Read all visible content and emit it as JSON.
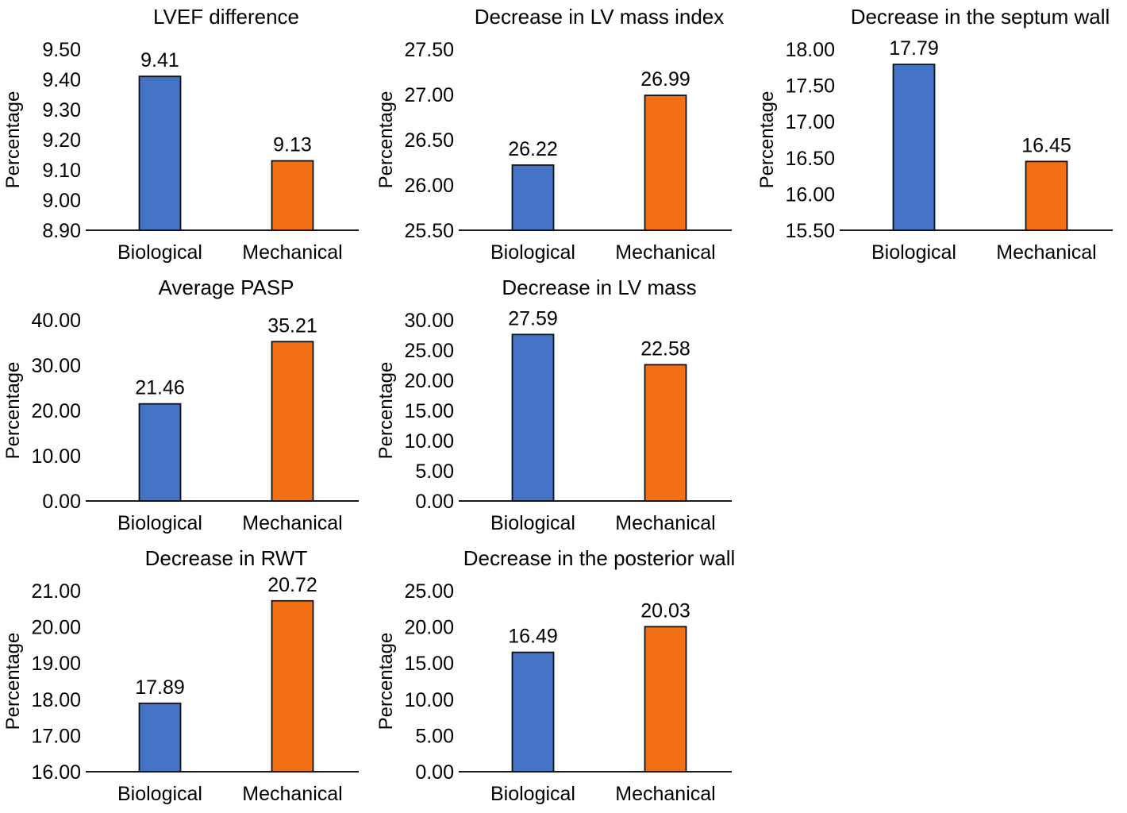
{
  "figure": {
    "background": "#ffffff",
    "layout": "3x3 grid, 7 charts (last column of rows 2 and 3 empty)"
  },
  "colors": {
    "biological_bar": "#4472C4",
    "mechanical_bar": "#F36F13",
    "bar_border": "#111111",
    "axis_line": "#1a1a1a",
    "text": "#000000"
  },
  "chart_data": [
    {
      "type": "bar",
      "title": "LVEF difference",
      "ylabel": "Percentage",
      "xlabel": "",
      "categories": [
        "Biological",
        "Mechanical"
      ],
      "values": [
        9.41,
        9.13
      ],
      "value_labels": [
        "9.41",
        "9.13"
      ],
      "ylim": [
        8.9,
        9.5
      ],
      "ytick_values": [
        8.9,
        9.0,
        9.1,
        9.2,
        9.3,
        9.4,
        9.5
      ],
      "ytick_labels": [
        "8.90",
        "9.00",
        "9.10",
        "9.20",
        "9.30",
        "9.40",
        "9.50"
      ],
      "grid": false,
      "legend": "none"
    },
    {
      "type": "bar",
      "title": "Decrease in LV mass index",
      "ylabel": "Percentage",
      "xlabel": "",
      "categories": [
        "Biological",
        "Mechanical"
      ],
      "values": [
        26.22,
        26.99
      ],
      "value_labels": [
        "26.22",
        "26.99"
      ],
      "ylim": [
        25.5,
        27.5
      ],
      "ytick_values": [
        25.5,
        26.0,
        26.5,
        27.0,
        27.5
      ],
      "ytick_labels": [
        "25.50",
        "26.00",
        "26.50",
        "27.00",
        "27.50"
      ],
      "grid": false,
      "legend": "none"
    },
    {
      "type": "bar",
      "title": "Decrease in the septum wall",
      "ylabel": "Percentage",
      "xlabel": "",
      "categories": [
        "Biological",
        "Mechanical"
      ],
      "values": [
        17.79,
        16.45
      ],
      "value_labels": [
        "17.79",
        "16.45"
      ],
      "ylim": [
        15.5,
        18.0
      ],
      "ytick_values": [
        15.5,
        16.0,
        16.5,
        17.0,
        17.5,
        18.0
      ],
      "ytick_labels": [
        "15.50",
        "16.00",
        "16.50",
        "17.00",
        "17.50",
        "18.00"
      ],
      "grid": false,
      "legend": "none"
    },
    {
      "type": "bar",
      "title": "Average PASP",
      "ylabel": "Percentage",
      "xlabel": "",
      "categories": [
        "Biological",
        "Mechanical"
      ],
      "values": [
        21.46,
        35.21
      ],
      "value_labels": [
        "21.46",
        "35.21"
      ],
      "ylim": [
        0,
        40
      ],
      "ytick_values": [
        0,
        10,
        20,
        30,
        40
      ],
      "ytick_labels": [
        "0.00",
        "10.00",
        "20.00",
        "30.00",
        "40.00"
      ],
      "grid": false,
      "legend": "none"
    },
    {
      "type": "bar",
      "title": "Decrease in LV mass",
      "ylabel": "Percentage",
      "xlabel": "",
      "categories": [
        "Biological",
        "Mechanical"
      ],
      "values": [
        27.59,
        22.58
      ],
      "value_labels": [
        "27.59",
        "22.58"
      ],
      "ylim": [
        0,
        30
      ],
      "ytick_values": [
        0,
        5,
        10,
        15,
        20,
        25,
        30
      ],
      "ytick_labels": [
        "0.00",
        "5.00",
        "10.00",
        "15.00",
        "20.00",
        "25.00",
        "30.00"
      ],
      "grid": false,
      "legend": "none"
    },
    {
      "type": "bar",
      "title": "Decrease in RWT",
      "ylabel": "Percentage",
      "xlabel": "",
      "categories": [
        "Biological",
        "Mechanical"
      ],
      "values": [
        17.89,
        20.72
      ],
      "value_labels": [
        "17.89",
        "20.72"
      ],
      "ylim": [
        16.0,
        21.0
      ],
      "ytick_values": [
        16,
        17,
        18,
        19,
        20,
        21
      ],
      "ytick_labels": [
        "16.00",
        "17.00",
        "18.00",
        "19.00",
        "20.00",
        "21.00"
      ],
      "grid": false,
      "legend": "none"
    },
    {
      "type": "bar",
      "title": "Decrease in the posterior wall",
      "ylabel": "Percentage",
      "xlabel": "",
      "categories": [
        "Biological",
        "Mechanical"
      ],
      "values": [
        16.49,
        20.03
      ],
      "value_labels": [
        "16.49",
        "20.03"
      ],
      "ylim": [
        0,
        25
      ],
      "ytick_values": [
        0,
        5,
        10,
        15,
        20,
        25
      ],
      "ytick_labels": [
        "0.00",
        "5.00",
        "10.00",
        "15.00",
        "20.00",
        "25.00"
      ],
      "grid": false,
      "legend": "none"
    }
  ]
}
